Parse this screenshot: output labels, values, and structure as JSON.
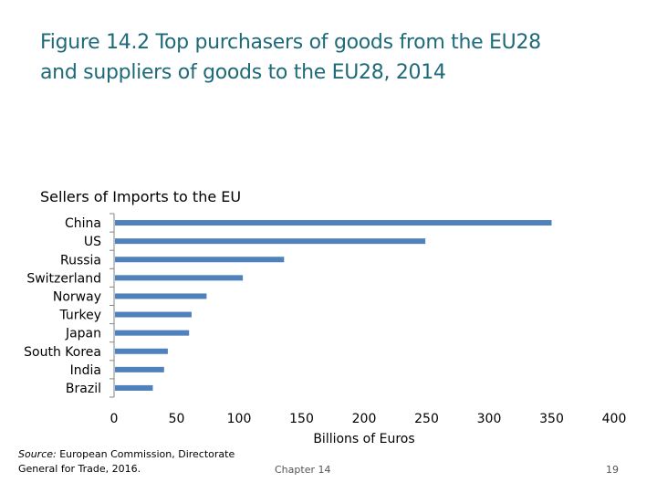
{
  "slide": {
    "title_line1": "Figure 14.2 Top purchasers of goods from the EU28",
    "title_line2": "and suppliers of goods to the EU28, 2014",
    "source_label": "Source:",
    "source_line1_rest": " European Commission, Directorate",
    "source_line2": "General for Trade, 2016.",
    "footer_center": "Chapter 14",
    "page_number": "19"
  },
  "colors": {
    "title": "#1f6a7a",
    "bar": "#4f81bd",
    "axis": "#868686"
  },
  "chart_data": {
    "type": "bar",
    "orientation": "horizontal",
    "title": "Sellers of Imports to the EU",
    "categories": [
      "China",
      "US",
      "Russia",
      "Switzerland",
      "Norway",
      "Turkey",
      "Japan",
      "South Korea",
      "India",
      "Brazil"
    ],
    "series": [
      {
        "name": "Imports to the EU",
        "values": [
          350,
          249,
          136,
          103,
          74,
          62,
          60,
          43,
          40,
          31
        ]
      }
    ],
    "xlabel": "Billions of Euros",
    "ylabel": "",
    "xlim": [
      0,
      400
    ],
    "xticks": [
      "0",
      "50",
      "100",
      "150",
      "200",
      "250",
      "300",
      "350",
      "400"
    ],
    "grid": false,
    "legend": "none"
  }
}
